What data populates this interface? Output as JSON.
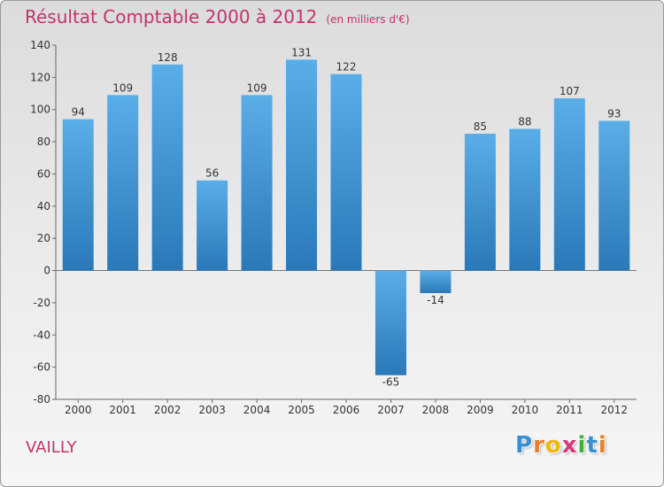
{
  "header": {
    "title": "Résultat Comptable 2000 à 2012",
    "subtitle": "(en milliers d'€)"
  },
  "footer": {
    "city": "VAILLY",
    "logo_letters": [
      "P",
      "r",
      "o",
      "x",
      "i",
      "t",
      "i"
    ],
    "logo_colors": [
      "#3a8fd0",
      "#e8802a",
      "#f2b70d",
      "#d63a7a",
      "#3fae3a",
      "#3a8fd0",
      "#e8802a"
    ]
  },
  "colors": {
    "bar_top": "#5aaee8",
    "bar_bottom": "#2a78b8",
    "accent": "#c0346a"
  },
  "chart_data": {
    "type": "bar",
    "title": "Résultat Comptable 2000 à 2012",
    "subtitle": "(en milliers d'€)",
    "xlabel": "",
    "ylabel": "",
    "categories": [
      "2000",
      "2001",
      "2002",
      "2003",
      "2004",
      "2005",
      "2006",
      "2007",
      "2008",
      "2009",
      "2010",
      "2011",
      "2012"
    ],
    "values": [
      94,
      109,
      128,
      56,
      109,
      131,
      122,
      -65,
      -14,
      85,
      88,
      107,
      93
    ],
    "ylim": [
      -80,
      140
    ],
    "yticks": [
      -80,
      -60,
      -40,
      -20,
      0,
      20,
      40,
      60,
      80,
      100,
      120,
      140
    ],
    "grid": false,
    "legend": "none"
  }
}
